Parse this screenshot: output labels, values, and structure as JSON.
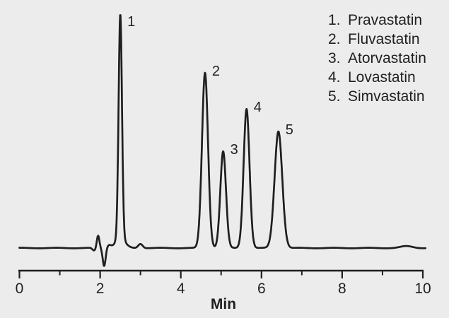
{
  "figure": {
    "background_color": "#ececec",
    "trace_color": "#1f1f1f",
    "text_color": "#1f1f1f"
  },
  "legend": {
    "items": [
      {
        "number": "1.",
        "name": "Pravastatin"
      },
      {
        "number": "2.",
        "name": "Fluvastatin"
      },
      {
        "number": "3.",
        "name": "Atorvastatin"
      },
      {
        "number": "4.",
        "name": "Lovastatin"
      },
      {
        "number": "5.",
        "name": "Simvastatin"
      }
    ]
  },
  "chart_data": {
    "type": "line",
    "description": "HPLC chromatogram: detector response vs time for five statins",
    "x_axis": {
      "label": "Min",
      "min": 0,
      "max": 10,
      "major_tick_values": [
        0,
        2,
        4,
        6,
        8,
        10
      ],
      "major_tick_labels": [
        "0",
        "2",
        "4",
        "6",
        "8",
        "10"
      ],
      "minor_tick_values": [
        1,
        3,
        5,
        7,
        9
      ]
    },
    "y_axis": {
      "visible": false
    },
    "peaks": [
      {
        "label": "1",
        "name": "Pravastatin",
        "retention_min": 2.5,
        "rel_height": 1.0,
        "sigma_min": 0.042
      },
      {
        "label": "2",
        "name": "Fluvastatin",
        "retention_min": 4.6,
        "rel_height": 0.78,
        "sigma_min": 0.075
      },
      {
        "label": "3",
        "name": "Atorvastatin",
        "retention_min": 5.05,
        "rel_height": 0.43,
        "sigma_min": 0.07
      },
      {
        "label": "4",
        "name": "Lovastatin",
        "retention_min": 5.63,
        "rel_height": 0.62,
        "sigma_min": 0.073
      },
      {
        "label": "5",
        "name": "Simvastatin",
        "retention_min": 6.42,
        "rel_height": 0.52,
        "sigma_min": 0.095
      }
    ],
    "baseline_features": [
      {
        "t_min": 1.85,
        "rel_amp": -0.012,
        "sigma_min": 0.04,
        "note": "pre-disturbance dip"
      },
      {
        "t_min": 1.95,
        "rel_amp": 0.055,
        "sigma_min": 0.032,
        "note": "injection disturbance up-spike"
      },
      {
        "t_min": 2.1,
        "rel_amp": -0.08,
        "sigma_min": 0.036,
        "note": "injection disturbance down-spike"
      },
      {
        "t_min": 2.22,
        "rel_amp": 0.012,
        "sigma_min": 0.05,
        "note": "recovery shoulder"
      },
      {
        "t_min": 2.5,
        "rel_amp": 0.04,
        "sigma_min": 0.12,
        "note": "peak 1 base flare"
      },
      {
        "t_min": 3.0,
        "rel_amp": 0.019,
        "sigma_min": 0.055,
        "note": "small bump after peak 1"
      },
      {
        "t_min": 9.6,
        "rel_amp": 0.008,
        "sigma_min": 0.15,
        "note": "late baseline swell"
      }
    ]
  }
}
